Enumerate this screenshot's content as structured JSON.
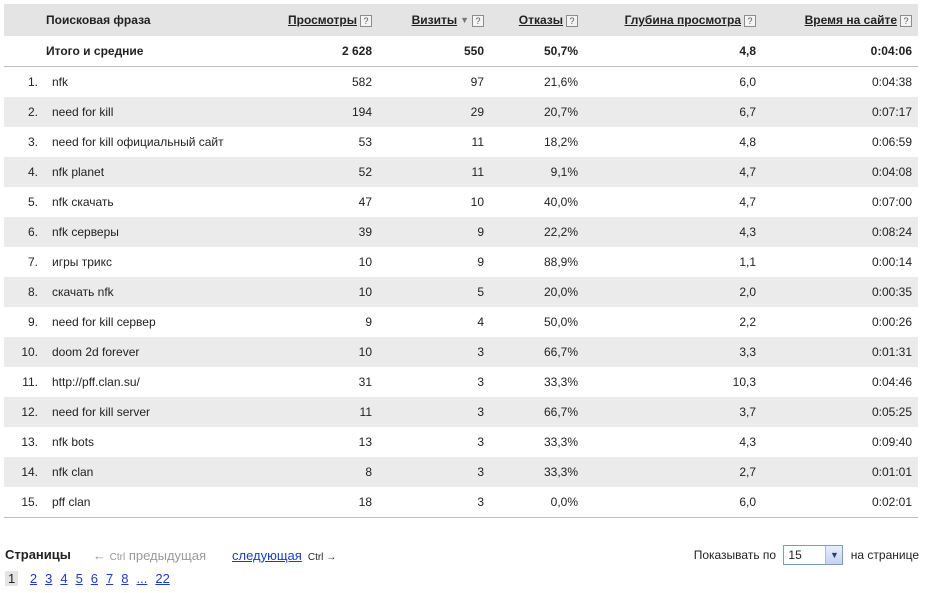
{
  "table": {
    "headers": {
      "phrase": "Поисковая фраза",
      "views": "Просмотры",
      "visits": "Визиты",
      "bounces": "Отказы",
      "depth": "Глубина просмотра",
      "time": "Время на сайте"
    },
    "help_mark": "?",
    "sort_arrow": "▼",
    "total": {
      "label": "Итого и средние",
      "views": "2 628",
      "visits": "550",
      "bounces": "50,7%",
      "depth": "4,8",
      "time": "0:04:06"
    },
    "rows": [
      {
        "n": "1.",
        "phrase": "nfk",
        "views": "582",
        "visits": "97",
        "bounces": "21,6%",
        "depth": "6,0",
        "time": "0:04:38"
      },
      {
        "n": "2.",
        "phrase": "need for kill",
        "views": "194",
        "visits": "29",
        "bounces": "20,7%",
        "depth": "6,7",
        "time": "0:07:17"
      },
      {
        "n": "3.",
        "phrase": "need for kill официальный сайт",
        "views": "53",
        "visits": "11",
        "bounces": "18,2%",
        "depth": "4,8",
        "time": "0:06:59"
      },
      {
        "n": "4.",
        "phrase": "nfk planet",
        "views": "52",
        "visits": "11",
        "bounces": "9,1%",
        "depth": "4,7",
        "time": "0:04:08"
      },
      {
        "n": "5.",
        "phrase": "nfk скачать",
        "views": "47",
        "visits": "10",
        "bounces": "40,0%",
        "depth": "4,7",
        "time": "0:07:00"
      },
      {
        "n": "6.",
        "phrase": "nfk серверы",
        "views": "39",
        "visits": "9",
        "bounces": "22,2%",
        "depth": "4,3",
        "time": "0:08:24"
      },
      {
        "n": "7.",
        "phrase": "игры трикс",
        "views": "10",
        "visits": "9",
        "bounces": "88,9%",
        "depth": "1,1",
        "time": "0:00:14"
      },
      {
        "n": "8.",
        "phrase": "скачать nfk",
        "views": "10",
        "visits": "5",
        "bounces": "20,0%",
        "depth": "2,0",
        "time": "0:00:35"
      },
      {
        "n": "9.",
        "phrase": "need for kill сервер",
        "views": "9",
        "visits": "4",
        "bounces": "50,0%",
        "depth": "2,2",
        "time": "0:00:26"
      },
      {
        "n": "10.",
        "phrase": "doom 2d forever",
        "views": "10",
        "visits": "3",
        "bounces": "66,7%",
        "depth": "3,3",
        "time": "0:01:31"
      },
      {
        "n": "11.",
        "phrase": "http://pff.clan.su/",
        "views": "31",
        "visits": "3",
        "bounces": "33,3%",
        "depth": "10,3",
        "time": "0:04:46"
      },
      {
        "n": "12.",
        "phrase": "need for kill server",
        "views": "11",
        "visits": "3",
        "bounces": "66,7%",
        "depth": "3,7",
        "time": "0:05:25"
      },
      {
        "n": "13.",
        "phrase": "nfk bots",
        "views": "13",
        "visits": "3",
        "bounces": "33,3%",
        "depth": "4,3",
        "time": "0:09:40"
      },
      {
        "n": "14.",
        "phrase": "nfk clan",
        "views": "8",
        "visits": "3",
        "bounces": "33,3%",
        "depth": "2,7",
        "time": "0:01:01"
      },
      {
        "n": "15.",
        "phrase": "pff clan",
        "views": "18",
        "visits": "3",
        "bounces": "0,0%",
        "depth": "6,0",
        "time": "0:02:01"
      }
    ]
  },
  "pager": {
    "pages_label": "Страницы",
    "prev_arrow": "←",
    "prev_ctrl": "Ctrl",
    "prev_label": "предыдущая",
    "next_label": "следующая",
    "next_ctrl": "Ctrl",
    "next_arrow": "→",
    "show_label": "Показывать по",
    "per_page": "15",
    "per_page_suffix": "на странице",
    "current_page": "1",
    "pages": [
      "2",
      "3",
      "4",
      "5",
      "6",
      "7",
      "8",
      "...",
      "22"
    ]
  },
  "colors": {
    "header_bg": "#e4e4e4",
    "row_alt_bg": "#ebebeb",
    "link": "#1a3dc1"
  }
}
